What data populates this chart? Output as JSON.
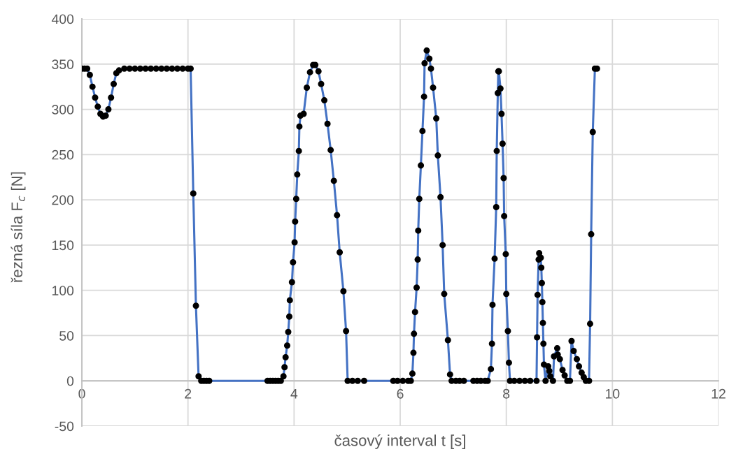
{
  "chart_data": {
    "type": "line",
    "xlabel": "časový interval t [s]",
    "ylabel": "řezná síla F$_{c}$ [N]",
    "xlim": [
      0,
      12
    ],
    "xticks": [
      0,
      2,
      4,
      6,
      8,
      10,
      12
    ],
    "ylim": [
      -50,
      400
    ],
    "yticks": [
      -50,
      0,
      50,
      100,
      150,
      200,
      250,
      300,
      350,
      400
    ],
    "grid": true,
    "marker": "circle",
    "line_style": "solid",
    "series": [
      {
        "color": "#4472c4",
        "x": [
          0,
          0.05,
          0.1,
          0.15,
          0.2,
          0.25,
          0.3,
          0.35,
          0.4,
          0.45,
          0.5,
          0.55,
          0.6,
          0.65,
          0.7,
          0.8,
          0.9,
          1.0,
          1.1,
          1.2,
          1.3,
          1.4,
          1.5,
          1.6,
          1.7,
          1.8,
          1.9,
          2.0,
          2.05,
          2.1,
          2.15,
          2.2,
          2.25,
          2.3,
          2.35,
          2.4,
          3.5,
          3.55,
          3.6,
          3.65,
          3.7,
          3.75,
          3.8,
          3.82,
          3.84,
          3.87,
          3.89,
          3.91,
          3.92,
          3.96,
          3.98,
          4.01,
          4.02,
          4.04,
          4.06,
          4.09,
          4.1,
          4.12,
          4.18,
          4.24,
          4.3,
          4.36,
          4.4,
          4.46,
          4.51,
          4.57,
          4.63,
          4.69,
          4.75,
          4.81,
          4.86,
          4.93,
          4.98,
          5.01,
          5.1,
          5.2,
          5.32,
          5.87,
          5.95,
          6.05,
          6.15,
          6.2,
          6.23,
          6.25,
          6.26,
          6.28,
          6.31,
          6.33,
          6.34,
          6.36,
          6.39,
          6.42,
          6.45,
          6.46,
          6.5,
          6.55,
          6.58,
          6.62,
          6.68,
          6.71,
          6.76,
          6.8,
          6.83,
          6.9,
          6.94,
          6.97,
          7.05,
          7.12,
          7.2,
          7.38,
          7.45,
          7.52,
          7.6,
          7.65,
          7.71,
          7.73,
          7.74,
          7.78,
          7.81,
          7.82,
          7.84,
          7.85,
          7.86,
          7.89,
          7.91,
          7.93,
          7.95,
          7.96,
          7.99,
          8.0,
          8.03,
          8.05,
          8.07,
          8.15,
          8.25,
          8.35,
          8.45,
          8.57,
          8.58,
          8.59,
          8.61,
          8.62,
          8.65,
          8.66,
          8.67,
          8.68,
          8.69,
          8.7,
          8.71,
          8.74,
          8.79,
          8.81,
          8.83,
          8.88,
          8.9,
          8.96,
          8.97,
          9.01,
          9.06,
          9.1,
          9.15,
          9.2,
          9.23,
          9.27,
          9.33,
          9.37,
          9.42,
          9.46,
          9.5,
          9.56,
          9.58,
          9.6,
          9.63,
          9.67,
          9.71
        ],
        "values": [
          345,
          345,
          345,
          338,
          325,
          313,
          303,
          295,
          292,
          293,
          300,
          313,
          328,
          340,
          343,
          345,
          345,
          345,
          345,
          345,
          345,
          345,
          345,
          345,
          345,
          345,
          345,
          345,
          345,
          207,
          83,
          5,
          0,
          0,
          0,
          0,
          0,
          0,
          0,
          0,
          0,
          0,
          5,
          15,
          26,
          39,
          54,
          71,
          89,
          109,
          131,
          153,
          176,
          201,
          228,
          254,
          281,
          293,
          295,
          324,
          341,
          349,
          349,
          342,
          328,
          310,
          284,
          255,
          221,
          183,
          142,
          99,
          55,
          0,
          0,
          0,
          0,
          0,
          0,
          0,
          0,
          0,
          8,
          31,
          52,
          76,
          103,
          134,
          166,
          201,
          238,
          276,
          314,
          351,
          365,
          356,
          345,
          324,
          290,
          249,
          203,
          150,
          96,
          45,
          7,
          0,
          0,
          0,
          0,
          0,
          0,
          0,
          0,
          0,
          13,
          41,
          84,
          135,
          192,
          254,
          318,
          342,
          342,
          323,
          295,
          262,
          224,
          182,
          140,
          96,
          55,
          20,
          0,
          0,
          0,
          0,
          0,
          0,
          48,
          95,
          134,
          141,
          136,
          125,
          108,
          87,
          64,
          41,
          18,
          0,
          16,
          11,
          5,
          0,
          27,
          36,
          29,
          24,
          12,
          6,
          0,
          0,
          44,
          33,
          24,
          16,
          9,
          4,
          0,
          0,
          63,
          162,
          275,
          345,
          345
        ]
      }
    ]
  }
}
